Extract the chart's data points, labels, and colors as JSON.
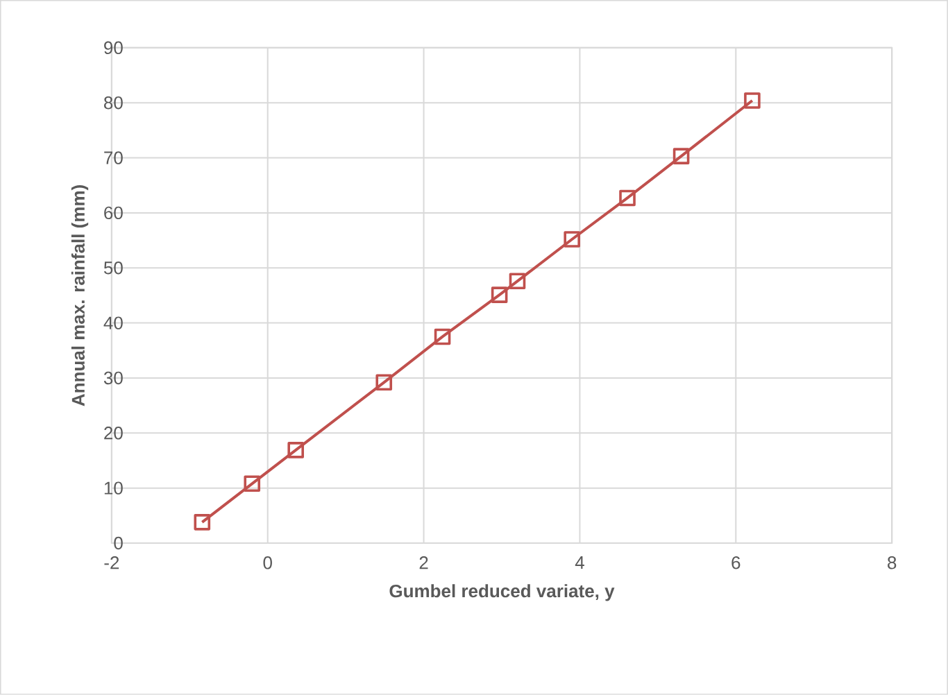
{
  "chart_data": {
    "type": "line",
    "xlabel": "Gumbel reduced variate, y",
    "ylabel": "Annual max. rainfall (mm)",
    "x": [
      -0.84,
      -0.2,
      0.36,
      1.49,
      2.24,
      2.97,
      3.2,
      3.9,
      4.61,
      5.3,
      6.21
    ],
    "series": [
      {
        "color": "#c0504d",
        "values": [
          3.8,
          10.8,
          16.9,
          29.2,
          37.5,
          45.1,
          47.6,
          55.2,
          62.7,
          70.3,
          80.4
        ]
      }
    ],
    "xlim": [
      -2,
      8
    ],
    "xticks": [
      -2,
      0,
      2,
      4,
      6,
      8
    ],
    "ylim": [
      0,
      90
    ],
    "yticks": [
      0,
      10,
      20,
      30,
      40,
      50,
      60,
      70,
      80,
      90
    ],
    "grid": true,
    "marker": "square",
    "line_style": "solid"
  }
}
